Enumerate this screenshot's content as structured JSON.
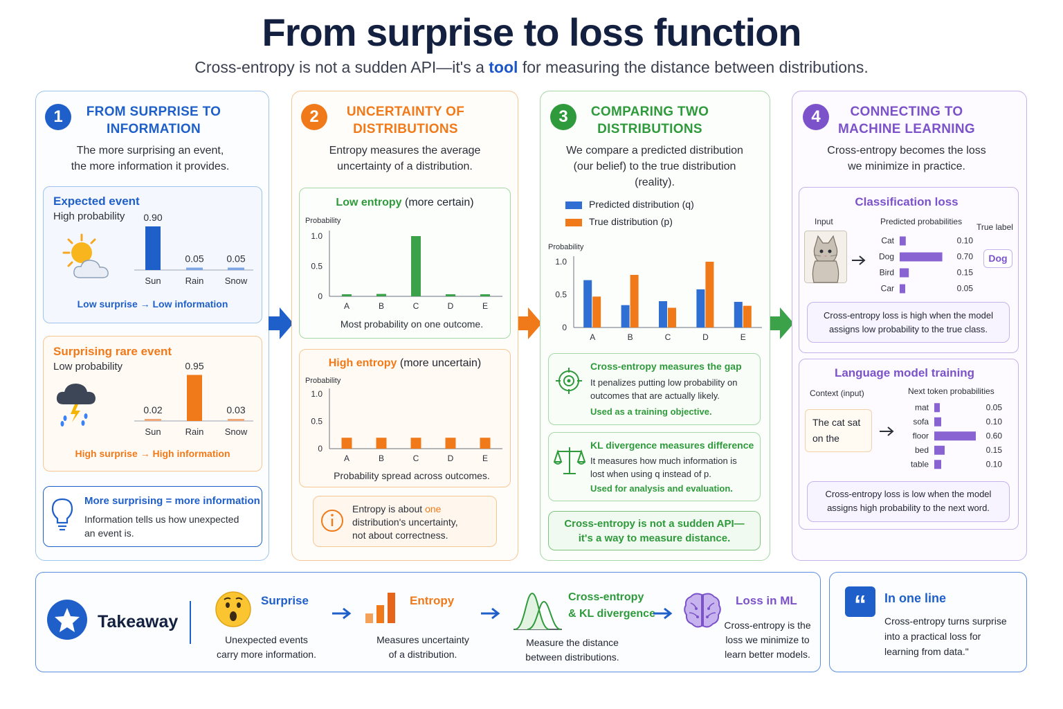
{
  "title": "From surprise to loss function",
  "subtitle": {
    "pre": "Cross-entropy is not a sudden API—it's a",
    "highlight": "tool",
    "post": "for measuring the distance between distributions."
  },
  "colors": {
    "blue": "#1f5fc9",
    "orange": "#f07a1a",
    "green": "#2f9a3b",
    "purple": "#7b52c9"
  },
  "panel1": {
    "number": "1",
    "heading_line1": "FROM SURPRISE TO",
    "heading_line2": "INFORMATION",
    "desc_line1": "The more surprising an event,",
    "desc_line2": "the more information it provides.",
    "expected": {
      "title": "Expected event",
      "sub": "High probability",
      "footer": "Low surprise → Low information",
      "bars": [
        {
          "label": "Sun",
          "value": 0.9,
          "text": "0.90"
        },
        {
          "label": "Rain",
          "value": 0.05,
          "text": "0.05"
        },
        {
          "label": "Snow",
          "value": 0.05,
          "text": "0.05"
        }
      ]
    },
    "rare": {
      "title": "Surprising rare event",
      "sub": "Low probability",
      "footer": "High surprise → High information",
      "bars": [
        {
          "label": "Sun",
          "value": 0.02,
          "text": "0.02"
        },
        {
          "label": "Rain",
          "value": 0.95,
          "text": "0.95"
        },
        {
          "label": "Snow",
          "value": 0.03,
          "text": "0.03"
        }
      ]
    },
    "note": {
      "title": "More surprising = more information",
      "line1": "Information tells us how unexpected",
      "line2": "an event is."
    }
  },
  "panel2": {
    "number": "2",
    "heading_line1": "UNCERTAINTY OF",
    "heading_line2": "DISTRIBUTIONS",
    "desc_line1": "Entropy measures the average",
    "desc_line2": "uncertainty of a distribution.",
    "low": {
      "title_em": "Low entropy",
      "title_rest": "(more certain)",
      "ylabel": "Probability",
      "caption": "Most probability on one outcome."
    },
    "high": {
      "title_em": "High entropy",
      "title_rest": "(more uncertain)",
      "ylabel": "Probability",
      "caption": "Probability spread across outcomes."
    },
    "note": {
      "line1_pre": "Entropy is about",
      "line1_em": "one",
      "line2": "distribution's uncertainty,",
      "line3": "not about correctness."
    }
  },
  "panel3": {
    "number": "3",
    "heading_line1": "COMPARING TWO",
    "heading_line2": "DISTRIBUTIONS",
    "desc_line1": "We compare a predicted distribution",
    "desc_line2": "(our belief) to the true distribution",
    "desc_line3": "(reality).",
    "legend_q": "Predicted distribution (q)",
    "legend_p": "True distribution (p)",
    "ylabel": "Probability",
    "ce": {
      "title": "Cross-entropy measures the gap",
      "line1": "It penalizes putting low probability on",
      "line2": "outcomes that are actually likely.",
      "use": "Used as a training objective."
    },
    "kl": {
      "title": "KL divergence measures difference",
      "line1": "It measures how much information is",
      "line2": "lost when using q instead of p.",
      "use": "Used for analysis and evaluation."
    },
    "banner_line1": "Cross-entropy is not a sudden API—",
    "banner_line2": "it's a way to measure distance."
  },
  "panel4": {
    "number": "4",
    "heading_line1": "CONNECTING TO",
    "heading_line2": "MACHINE LEARNING",
    "desc_line1": "Cross-entropy becomes the loss",
    "desc_line2": "we minimize in practice.",
    "cls": {
      "title": "Classification loss",
      "input": "Input",
      "pred": "Predicted probabilities",
      "true": "True label",
      "true_value": "Dog",
      "rows": [
        {
          "label": "Cat",
          "value": 0.1,
          "text": "0.10"
        },
        {
          "label": "Dog",
          "value": 0.7,
          "text": "0.70"
        },
        {
          "label": "Bird",
          "value": 0.15,
          "text": "0.15"
        },
        {
          "label": "Car",
          "value": 0.05,
          "text": "0.05"
        }
      ],
      "note_line1": "Cross-entropy loss is high when the model",
      "note_line2": "assigns low probability to the true class."
    },
    "lm": {
      "title": "Language model training",
      "context": "Context (input)",
      "next": "Next token probabilities",
      "ctx_line1": "The cat sat",
      "ctx_line2": "on the",
      "rows": [
        {
          "label": "mat",
          "value": 0.05,
          "text": "0.05"
        },
        {
          "label": "sofa",
          "value": 0.1,
          "text": "0.10"
        },
        {
          "label": "floor",
          "value": 0.6,
          "text": "0.60"
        },
        {
          "label": "bed",
          "value": 0.15,
          "text": "0.15"
        },
        {
          "label": "table",
          "value": 0.1,
          "text": "0.10"
        }
      ],
      "note_line1": "Cross-entropy loss is low when the model",
      "note_line2": "assigns high probability to the next word."
    }
  },
  "takeaway": {
    "label": "Takeaway",
    "steps": [
      {
        "title": "Surprise",
        "line1": "Unexpected events",
        "line2": "carry more information."
      },
      {
        "title": "Entropy",
        "line1": "Measures uncertainty",
        "line2": "of a distribution."
      },
      {
        "title_line1": "Cross-entropy",
        "title_line2": "& KL divergence",
        "line1": "Measure the distance",
        "line2": "between distributions."
      },
      {
        "title": "Loss in ML",
        "line1": "Cross-entropy is the",
        "line2": "loss we minimize to",
        "line3": "learn better models."
      }
    ]
  },
  "oneline": {
    "title": "In one line",
    "line1": "Cross-entropy turns surprise",
    "line2": "into a practical loss for",
    "line3": "learning from data.\""
  },
  "chart_data": [
    {
      "type": "bar",
      "title": "Expected event",
      "categories": [
        "Sun",
        "Rain",
        "Snow"
      ],
      "values": [
        0.9,
        0.05,
        0.05
      ]
    },
    {
      "type": "bar",
      "title": "Surprising rare event",
      "categories": [
        "Sun",
        "Rain",
        "Snow"
      ],
      "values": [
        0.02,
        0.95,
        0.03
      ]
    },
    {
      "type": "bar",
      "title": "Low entropy",
      "ylabel": "Probability",
      "ylim": [
        0,
        1.0
      ],
      "yticks": [
        "1.0",
        "0.5",
        "0"
      ],
      "categories": [
        "A",
        "B",
        "C",
        "D",
        "E"
      ],
      "values": [
        0.03,
        0.04,
        1.0,
        0.02,
        0.02
      ]
    },
    {
      "type": "bar",
      "title": "High entropy",
      "ylabel": "Probability",
      "ylim": [
        0,
        1.0
      ],
      "yticks": [
        "1.0",
        "0.5",
        "0"
      ],
      "categories": [
        "A",
        "B",
        "C",
        "D",
        "E"
      ],
      "values": [
        0.2,
        0.2,
        0.2,
        0.2,
        0.2
      ]
    },
    {
      "type": "bar",
      "ylabel": "Probability",
      "ylim": [
        0,
        1.0
      ],
      "yticks": [
        "1.0",
        "0.5",
        "0"
      ],
      "categories": [
        "A",
        "B",
        "C",
        "D",
        "E"
      ],
      "series": [
        {
          "name": "Predicted distribution (q)",
          "values": [
            0.72,
            0.34,
            0.4,
            0.58,
            0.39
          ]
        },
        {
          "name": "True distribution (p)",
          "values": [
            0.47,
            0.8,
            0.3,
            1.0,
            0.33
          ]
        }
      ]
    },
    {
      "type": "bar",
      "title": "Classification loss",
      "categories": [
        "Cat",
        "Dog",
        "Bird",
        "Car"
      ],
      "values": [
        0.1,
        0.7,
        0.15,
        0.05
      ]
    },
    {
      "type": "bar",
      "title": "Language model training",
      "categories": [
        "mat",
        "sofa",
        "floor",
        "bed",
        "table"
      ],
      "values": [
        0.05,
        0.1,
        0.6,
        0.15,
        0.1
      ]
    }
  ]
}
